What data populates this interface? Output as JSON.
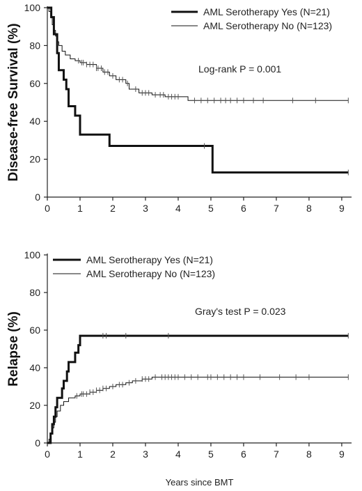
{
  "chart_data": [
    {
      "type": "line",
      "title": "",
      "xlabel": "",
      "ylabel": "Disease-free Survival (%)",
      "xlim": [
        0,
        9.3
      ],
      "ylim": [
        0,
        100
      ],
      "x_ticks": [
        0,
        1,
        2,
        3,
        4,
        5,
        6,
        7,
        8,
        9
      ],
      "y_ticks": [
        0,
        20,
        40,
        60,
        80,
        100
      ],
      "legend_position": "top-right",
      "annotation": "Log-rank P = 0.001",
      "series": [
        {
          "name": "AML Serotherapy Yes (N=21)",
          "style": "thick",
          "step": true,
          "points": [
            [
              0,
              100
            ],
            [
              0.12,
              95
            ],
            [
              0.2,
              86
            ],
            [
              0.3,
              76
            ],
            [
              0.35,
              67
            ],
            [
              0.5,
              62
            ],
            [
              0.58,
              57
            ],
            [
              0.65,
              48
            ],
            [
              0.85,
              43
            ],
            [
              1.0,
              33
            ],
            [
              1.9,
              27
            ],
            [
              5.05,
              13
            ],
            [
              9.2,
              13
            ]
          ],
          "censor_x": [
            4.8,
            9.2
          ]
        },
        {
          "name": "AML Serotherapy No (N=123)",
          "style": "thin",
          "step": true,
          "points": [
            [
              0,
              100
            ],
            [
              0.05,
              98
            ],
            [
              0.1,
              95
            ],
            [
              0.15,
              91
            ],
            [
              0.2,
              88
            ],
            [
              0.25,
              85
            ],
            [
              0.3,
              82
            ],
            [
              0.35,
              80
            ],
            [
              0.45,
              77
            ],
            [
              0.55,
              75
            ],
            [
              0.7,
              73
            ],
            [
              0.85,
              72
            ],
            [
              1.0,
              71
            ],
            [
              1.2,
              70
            ],
            [
              1.5,
              68
            ],
            [
              1.7,
              66
            ],
            [
              1.9,
              64
            ],
            [
              2.1,
              62
            ],
            [
              2.4,
              60
            ],
            [
              2.5,
              57
            ],
            [
              2.8,
              55
            ],
            [
              3.2,
              54
            ],
            [
              3.6,
              53
            ],
            [
              4.1,
              53
            ],
            [
              4.3,
              51
            ],
            [
              9.2,
              51
            ]
          ],
          "censor_x": [
            0.95,
            1.05,
            1.1,
            1.2,
            1.3,
            1.4,
            1.5,
            1.55,
            1.65,
            1.75,
            1.85,
            2.0,
            2.2,
            2.3,
            2.45,
            2.7,
            2.9,
            3.0,
            3.1,
            3.3,
            3.45,
            3.55,
            3.7,
            3.8,
            3.9,
            4.0,
            4.5,
            4.7,
            4.9,
            5.1,
            5.3,
            5.45,
            5.6,
            5.8,
            6.0,
            6.3,
            6.6,
            7.5,
            8.2,
            9.2
          ]
        }
      ]
    },
    {
      "type": "line",
      "title": "",
      "xlabel": "Years since BMT",
      "ylabel": "Relapse (%)",
      "xlim": [
        0,
        9.3
      ],
      "ylim": [
        0,
        100
      ],
      "x_ticks": [
        0,
        1,
        2,
        3,
        4,
        5,
        6,
        7,
        8,
        9
      ],
      "y_ticks": [
        0,
        20,
        40,
        60,
        80,
        100
      ],
      "legend_position": "top-left",
      "annotation": "Gray's test P = 0.023",
      "series": [
        {
          "name": "AML Serotherapy Yes (N=21)",
          "style": "thick",
          "step": true,
          "points": [
            [
              0,
              0
            ],
            [
              0.1,
              5
            ],
            [
              0.15,
              10
            ],
            [
              0.2,
              14
            ],
            [
              0.25,
              19
            ],
            [
              0.3,
              24
            ],
            [
              0.45,
              29
            ],
            [
              0.5,
              33
            ],
            [
              0.6,
              38
            ],
            [
              0.65,
              43
            ],
            [
              0.85,
              48
            ],
            [
              0.95,
              52
            ],
            [
              1.0,
              57
            ],
            [
              9.2,
              57
            ]
          ],
          "censor_x": [
            1.7,
            1.8,
            2.4,
            3.7,
            9.2
          ]
        },
        {
          "name": "AML Serotherapy No (N=123)",
          "style": "thin",
          "step": true,
          "points": [
            [
              0,
              0
            ],
            [
              0.05,
              2
            ],
            [
              0.1,
              5
            ],
            [
              0.15,
              8
            ],
            [
              0.2,
              11
            ],
            [
              0.25,
              14
            ],
            [
              0.3,
              17
            ],
            [
              0.4,
              20
            ],
            [
              0.5,
              22
            ],
            [
              0.65,
              24
            ],
            [
              0.85,
              25
            ],
            [
              1.0,
              26
            ],
            [
              1.3,
              27
            ],
            [
              1.5,
              28
            ],
            [
              1.7,
              29
            ],
            [
              1.9,
              30
            ],
            [
              2.1,
              31
            ],
            [
              2.4,
              32
            ],
            [
              2.6,
              33
            ],
            [
              2.9,
              34
            ],
            [
              3.2,
              35
            ],
            [
              9.2,
              35
            ]
          ],
          "censor_x": [
            0.9,
            1.05,
            1.1,
            1.2,
            1.3,
            1.4,
            1.5,
            1.6,
            1.7,
            1.8,
            2.0,
            2.2,
            2.3,
            2.5,
            2.7,
            2.9,
            3.0,
            3.1,
            3.3,
            3.5,
            3.6,
            3.7,
            3.8,
            3.9,
            4.0,
            4.2,
            4.4,
            4.6,
            4.9,
            5.0,
            5.2,
            5.4,
            5.6,
            5.8,
            6.0,
            6.5,
            7.1,
            7.6,
            8.0,
            9.2
          ]
        }
      ]
    }
  ]
}
